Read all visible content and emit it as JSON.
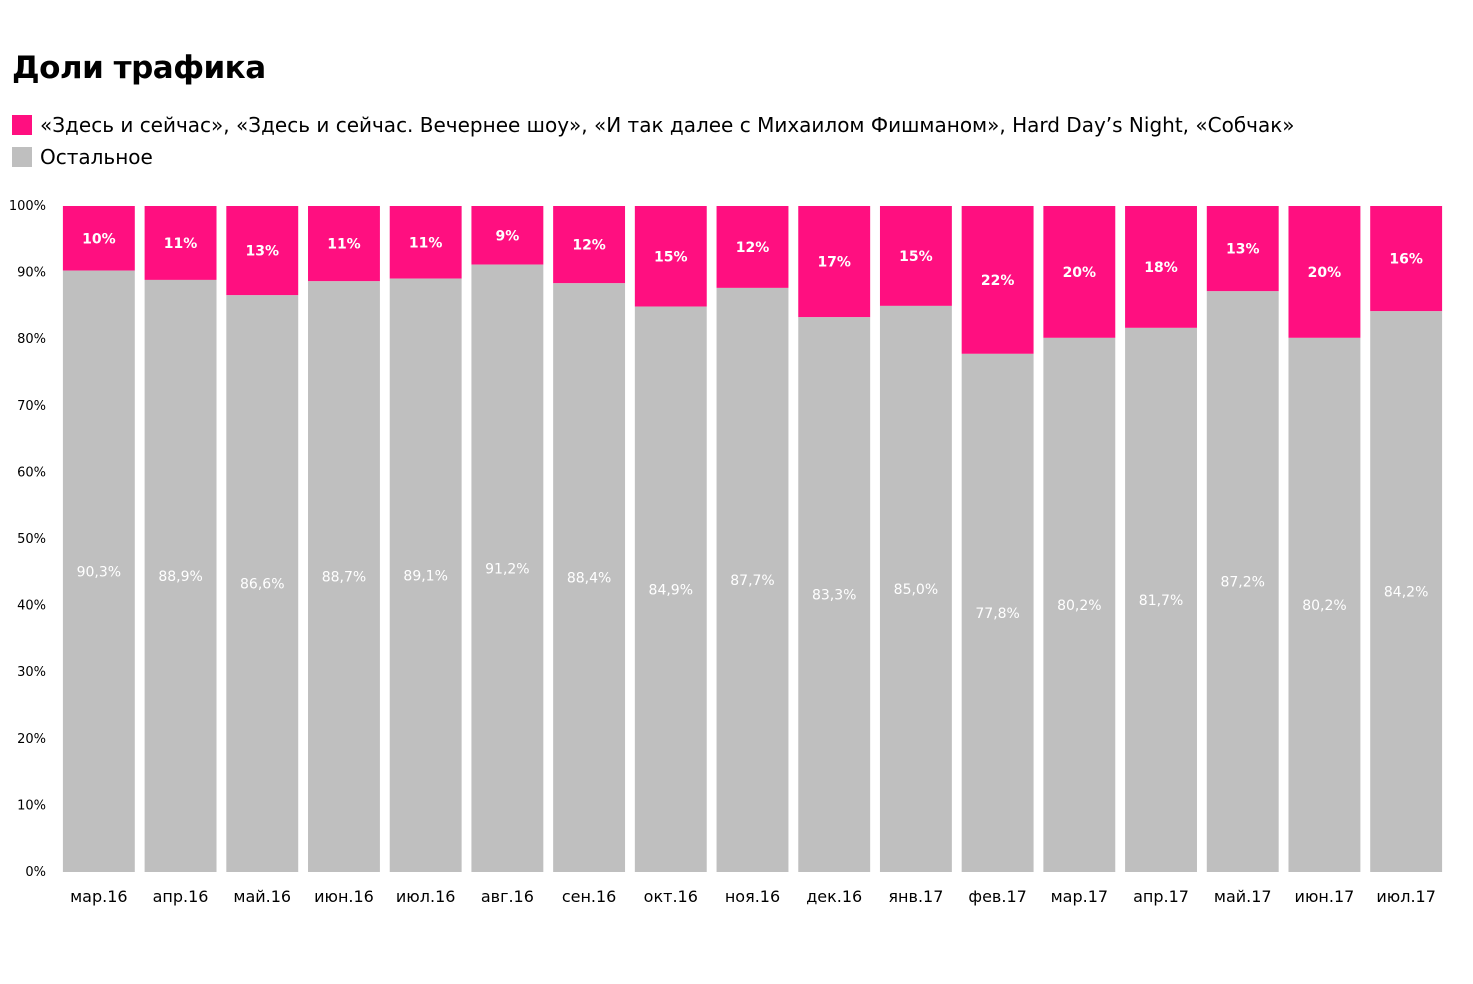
{
  "chart_data": {
    "type": "bar",
    "stacked": true,
    "title": "Доли трафика",
    "categories": [
      "мар.16",
      "апр.16",
      "май.16",
      "июн.16",
      "июл.16",
      "авг.16",
      "сен.16",
      "окт.16",
      "ноя.16",
      "дек.16",
      "янв.17",
      "фев.17",
      "мар.17",
      "апр.17",
      "май.17",
      "июн.17",
      "июл.17"
    ],
    "series": [
      {
        "name": "Остальное",
        "color": "#bfbfbf",
        "values": [
          90.3,
          88.9,
          86.6,
          88.7,
          89.1,
          91.2,
          88.4,
          84.9,
          87.7,
          83.3,
          85.0,
          77.8,
          80.2,
          81.7,
          87.2,
          80.2,
          84.2
        ],
        "labels": [
          "90,3%",
          "88,9%",
          "86,6%",
          "88,7%",
          "89,1%",
          "91,2%",
          "88,4%",
          "84,9%",
          "87,7%",
          "83,3%",
          "85,0%",
          "77,8%",
          "80,2%",
          "81,7%",
          "87,2%",
          "80,2%",
          "84,2%"
        ]
      },
      {
        "name": "«Здесь и сейчас»,  «Здесь и сейчас. Вечернее шоу», «И так далее с Михаилом Фишманом»,  Hard Day’s Night, «Собчак»",
        "color": "#ff0f80",
        "values": [
          10,
          11,
          13,
          11,
          11,
          9,
          12,
          15,
          12,
          17,
          15,
          22,
          20,
          18,
          13,
          20,
          16
        ],
        "labels": [
          "10%",
          "11%",
          "13%",
          "11%",
          "11%",
          "9%",
          "12%",
          "15%",
          "12%",
          "17%",
          "15%",
          "22%",
          "20%",
          "18%",
          "13%",
          "20%",
          "16%"
        ]
      }
    ],
    "ylim": [
      0,
      100
    ],
    "yticks": [
      "0%",
      "10%",
      "20%",
      "30%",
      "40%",
      "50%",
      "60%",
      "70%",
      "80%",
      "90%",
      "100%"
    ],
    "xlabel": "",
    "ylabel": "",
    "legend_position": "top-left",
    "grid": false
  }
}
